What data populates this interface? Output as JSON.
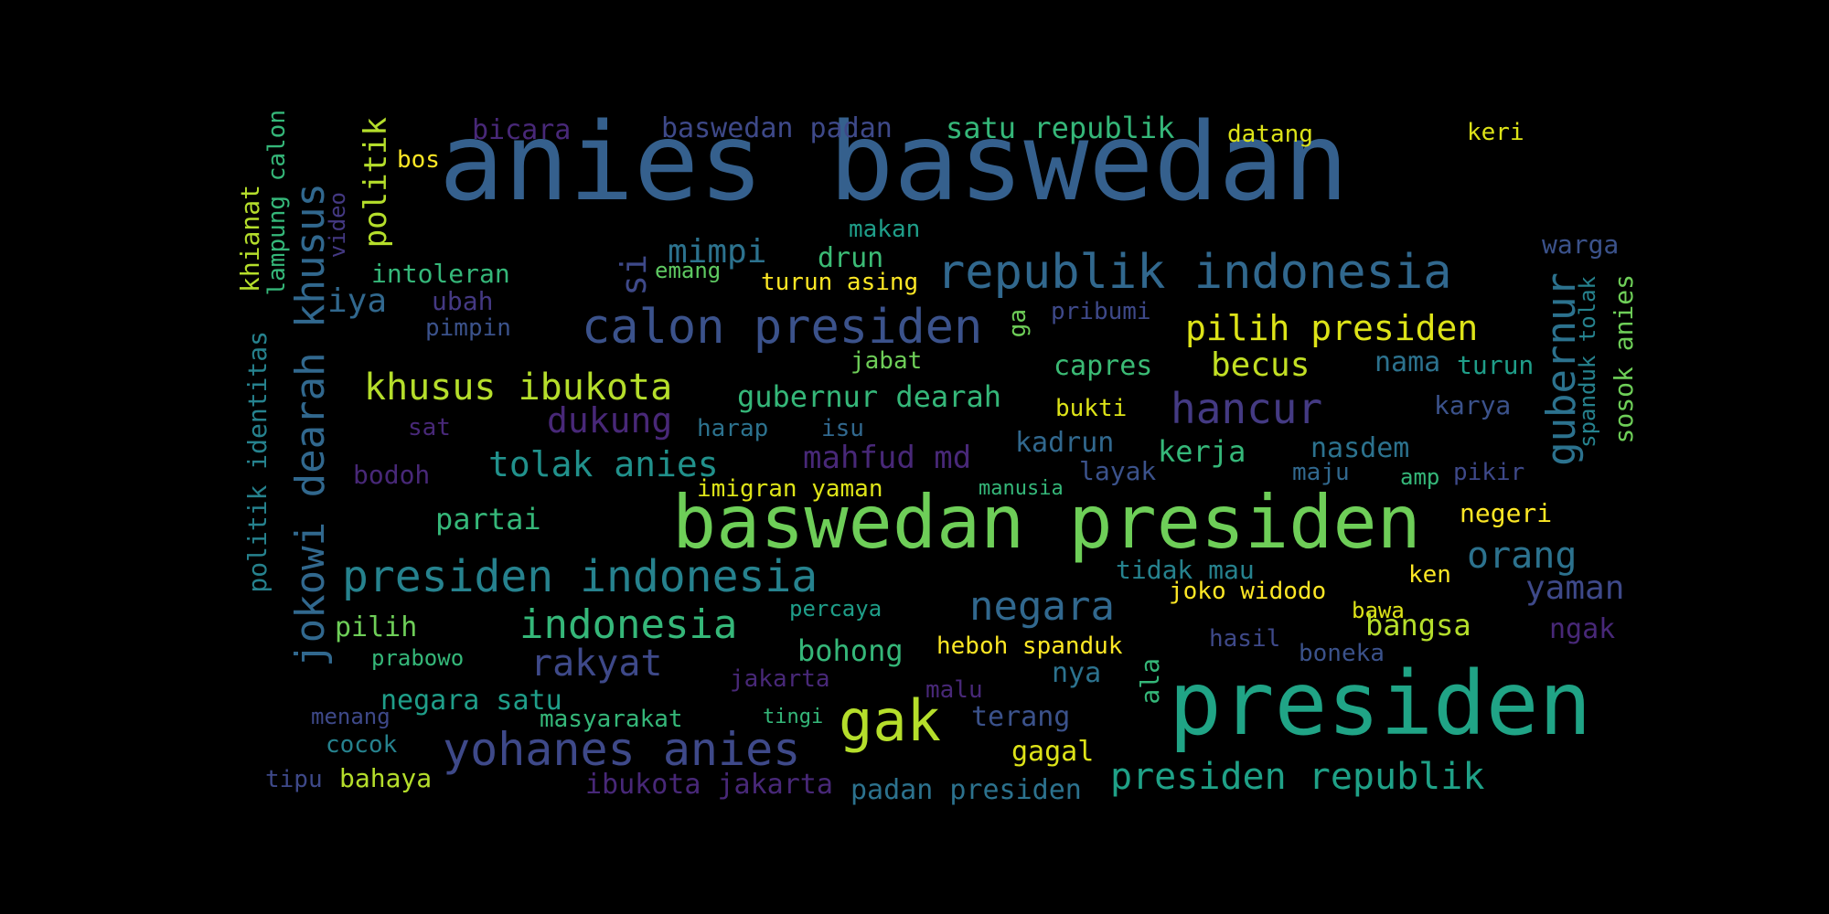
{
  "palette": {
    "deep_purple": "#482878",
    "dark_blue": "#3e4989",
    "blue": "#31688e",
    "steel": "#35608d",
    "teal": "#26828e",
    "teal_green": "#1f9e89",
    "green": "#35b779",
    "light_green": "#6ece58",
    "lime": "#b5de2b",
    "yellow": "#fde725"
  },
  "words": [
    {
      "text": "anies baswedan",
      "color": "#35608d"
    },
    {
      "text": "presiden",
      "color": "#20a486"
    },
    {
      "text": "baswedan presiden",
      "color": "#6ece58"
    },
    {
      "text": "republik indonesia",
      "color": "#31688e"
    },
    {
      "text": "calon presiden",
      "color": "#3b528b"
    },
    {
      "text": "presiden indonesia",
      "color": "#26828e"
    },
    {
      "text": "yohanes anies",
      "color": "#3e4989"
    },
    {
      "text": "gak",
      "color": "#b5de2b"
    },
    {
      "text": "indonesia",
      "color": "#35b779"
    },
    {
      "text": "negara",
      "color": "#31688e"
    },
    {
      "text": "hancur",
      "color": "#443a83"
    },
    {
      "text": "presiden republik",
      "color": "#1fa187"
    },
    {
      "text": "khusus ibukota",
      "color": "#b5de2b"
    },
    {
      "text": "pilih presiden",
      "color": "#dde318"
    },
    {
      "text": "tolak anies",
      "color": "#21918c"
    },
    {
      "text": "rakyat",
      "color": "#3e4989"
    },
    {
      "text": "mimpi",
      "color": "#2c728e"
    },
    {
      "text": "dukung",
      "color": "#482878"
    },
    {
      "text": "gubernur dearah",
      "color": "#35b779"
    },
    {
      "text": "mahfud md",
      "color": "#482878"
    },
    {
      "text": "orang",
      "color": "#2c728e"
    },
    {
      "text": "yaman",
      "color": "#3e4989"
    },
    {
      "text": "becus",
      "color": "#c2df23"
    },
    {
      "text": "satu republik",
      "color": "#35b779"
    },
    {
      "text": "baswedan padan",
      "color": "#3e4989"
    },
    {
      "text": "bicara",
      "color": "#482878"
    },
    {
      "text": "iya",
      "color": "#31688e"
    },
    {
      "text": "drun",
      "color": "#3bbb75"
    },
    {
      "text": "intoleran",
      "color": "#35b779"
    },
    {
      "text": "turun asing",
      "color": "#fde725"
    },
    {
      "text": "emang",
      "color": "#5ec962"
    },
    {
      "text": "makan",
      "color": "#1f9e89"
    },
    {
      "text": "ubah",
      "color": "#443983"
    },
    {
      "text": "pimpin",
      "color": "#3b528b"
    },
    {
      "text": "pribumi",
      "color": "#3e4989"
    },
    {
      "text": "capres",
      "color": "#3bbb75"
    },
    {
      "text": "jabat",
      "color": "#6ece58"
    },
    {
      "text": "bukti",
      "color": "#dde318"
    },
    {
      "text": "kadrun",
      "color": "#31688e"
    },
    {
      "text": "kerja",
      "color": "#35b779"
    },
    {
      "text": "nasdem",
      "color": "#2c728e"
    },
    {
      "text": "nama",
      "color": "#2c728e"
    },
    {
      "text": "turun",
      "color": "#1f9e89"
    },
    {
      "text": "karya",
      "color": "#3b528b"
    },
    {
      "text": "warga",
      "color": "#3b528b"
    },
    {
      "text": "layak",
      "color": "#3b528b"
    },
    {
      "text": "maju",
      "color": "#31688e"
    },
    {
      "text": "amp",
      "color": "#35b779"
    },
    {
      "text": "pikir",
      "color": "#3e4989"
    },
    {
      "text": "negeri",
      "color": "#fde725"
    },
    {
      "text": "sat",
      "color": "#482878"
    },
    {
      "text": "harap",
      "color": "#2c728e"
    },
    {
      "text": "isu",
      "color": "#31688e"
    },
    {
      "text": "bodoh",
      "color": "#482878"
    },
    {
      "text": "imigran yaman",
      "color": "#dde318"
    },
    {
      "text": "manusia",
      "color": "#35b779"
    },
    {
      "text": "partai",
      "color": "#35b779"
    },
    {
      "text": "tidak mau",
      "color": "#26828e"
    },
    {
      "text": "ken",
      "color": "#fde725"
    },
    {
      "text": "joko widodo",
      "color": "#fde725"
    },
    {
      "text": "bawa",
      "color": "#dde318"
    },
    {
      "text": "bangsa",
      "color": "#b5de2b"
    },
    {
      "text": "ngak",
      "color": "#482878"
    },
    {
      "text": "percaya",
      "color": "#1f9e89"
    },
    {
      "text": "bohong",
      "color": "#35b779"
    },
    {
      "text": "heboh spanduk",
      "color": "#fde725"
    },
    {
      "text": "pilih",
      "color": "#6ece58"
    },
    {
      "text": "prabowo",
      "color": "#35b779"
    },
    {
      "text": "hasil",
      "color": "#3e4989"
    },
    {
      "text": "boneka",
      "color": "#3b528b"
    },
    {
      "text": "nya",
      "color": "#2c728e"
    },
    {
      "text": "jakarta",
      "color": "#482878"
    },
    {
      "text": "malu",
      "color": "#482878"
    },
    {
      "text": "negara satu",
      "color": "#1f9e89"
    },
    {
      "text": "terang",
      "color": "#3b528b"
    },
    {
      "text": "menang",
      "color": "#3e4989"
    },
    {
      "text": "masyarakat",
      "color": "#35b779"
    },
    {
      "text": "tingi",
      "color": "#35b779"
    },
    {
      "text": "cocok",
      "color": "#26828e"
    },
    {
      "text": "gagal",
      "color": "#dde318"
    },
    {
      "text": "tipu",
      "color": "#3e4989"
    },
    {
      "text": "bahaya",
      "color": "#b5de2b"
    },
    {
      "text": "ibukota jakarta",
      "color": "#482878"
    },
    {
      "text": "padan presiden",
      "color": "#2c728e"
    },
    {
      "text": "bos",
      "color": "#fde725"
    },
    {
      "text": "datang",
      "color": "#dde318"
    },
    {
      "text": "keri",
      "color": "#dde318"
    },
    {
      "text": "jokowi dearah khusus",
      "color": "#31688e"
    },
    {
      "text": "politik",
      "color": "#b5de2b"
    },
    {
      "text": "politik identitas",
      "color": "#26828e"
    },
    {
      "text": "khianat",
      "color": "#b5de2b"
    },
    {
      "text": "lampung calon",
      "color": "#35b779"
    },
    {
      "text": "video",
      "color": "#443983"
    },
    {
      "text": "si",
      "color": "#3e4989"
    },
    {
      "text": "ga",
      "color": "#6ece58"
    },
    {
      "text": "gubernur",
      "color": "#2c728e"
    },
    {
      "text": "spanduk tolak",
      "color": "#26828e"
    },
    {
      "text": "sosok anies",
      "color": "#6ece58"
    },
    {
      "text": "ala",
      "color": "#35b779"
    }
  ]
}
